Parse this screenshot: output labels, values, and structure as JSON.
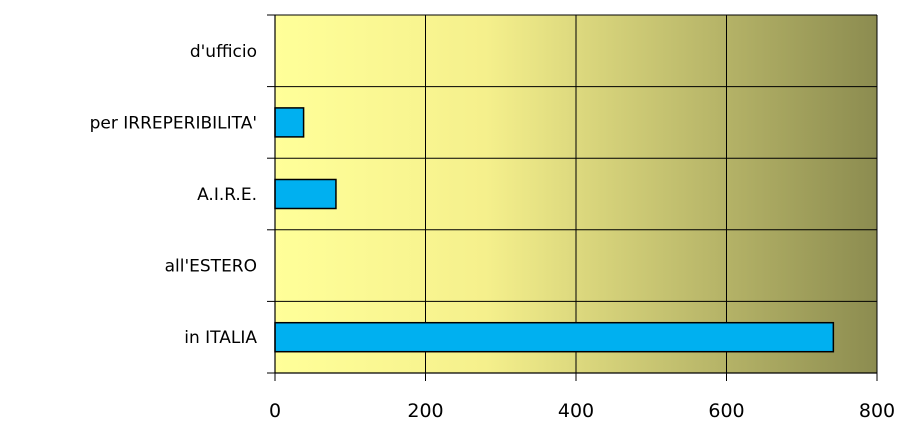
{
  "chart_data": {
    "type": "bar",
    "orientation": "horizontal",
    "categories": [
      "d'ufficio",
      "per IRREPERIBILITA'",
      "A.I.R.E.",
      "all'ESTERO",
      "in ITALIA"
    ],
    "values": [
      0,
      38,
      81,
      0,
      742
    ],
    "xlim": [
      0,
      800
    ],
    "xticks": [
      "0",
      "200",
      "400",
      "600",
      "800"
    ],
    "title": "",
    "xlabel": "",
    "ylabel": "",
    "grid": true,
    "legend": "none",
    "colors": {
      "bar_fill": "#00b0f0",
      "bar_stroke": "#000000",
      "plot_gradient_start": "#ffff99",
      "plot_gradient_end": "#8c8c50",
      "grid": "#000000"
    }
  }
}
